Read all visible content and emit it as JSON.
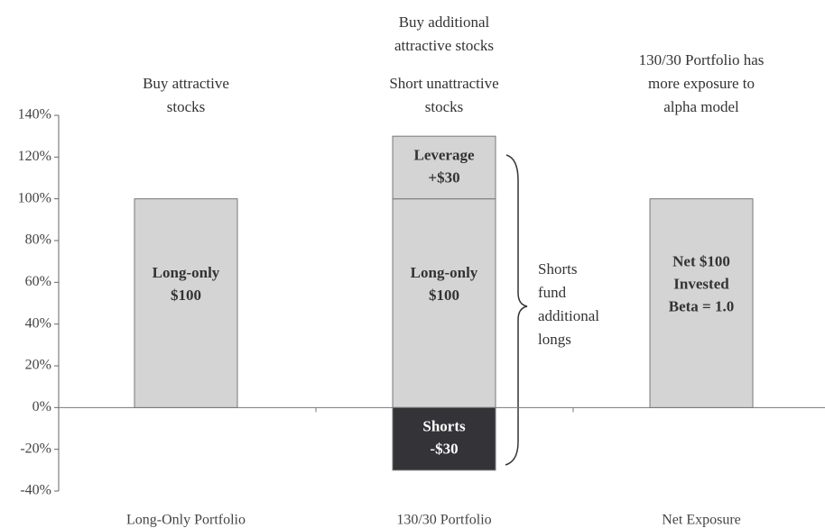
{
  "chart_data": {
    "type": "stacked-bar",
    "categories": [
      "Long-Only Portfolio",
      "130/30 Portfolio",
      "Net Exposure"
    ],
    "series": [
      {
        "color": "#d4d4d4",
        "values": [
          100,
          100,
          100
        ],
        "segment_labels": [
          [
            "Long-only",
            "$100"
          ],
          [
            "Long-only",
            "$100"
          ],
          [
            "Net $100",
            "Invested",
            "Beta = 1.0"
          ]
        ]
      },
      {
        "color": "#d4d4d4",
        "values": [
          null,
          30,
          null
        ],
        "segment_labels": [
          null,
          [
            "Leverage",
            "+$30"
          ],
          null
        ]
      },
      {
        "color": "#333338",
        "values": [
          null,
          -30,
          null
        ],
        "segment_labels": [
          null,
          [
            "Shorts",
            "-$30"
          ],
          null
        ]
      }
    ],
    "annotations": [
      [
        [
          "Buy attractive",
          "stocks"
        ]
      ],
      [
        [
          "Buy additional",
          "attractive stocks"
        ],
        [
          "Short unattractive",
          "stocks"
        ]
      ],
      [
        [
          "130/30 Portfolio has",
          "more exposure to",
          "alpha model"
        ]
      ]
    ],
    "brace_note": [
      "Shorts",
      "fund",
      "additional",
      "longs"
    ],
    "ylim": [
      -40,
      140
    ],
    "yticks": [
      {
        "value": -40,
        "label": "-40%"
      },
      {
        "value": -20,
        "label": "-20%"
      },
      {
        "value": 0,
        "label": "0%"
      },
      {
        "value": 20,
        "label": "20%"
      },
      {
        "value": 40,
        "label": "40%"
      },
      {
        "value": 60,
        "label": "60%"
      },
      {
        "value": 80,
        "label": "80%"
      },
      {
        "value": 100,
        "label": "100%"
      },
      {
        "value": 120,
        "label": "120%"
      },
      {
        "value": 140,
        "label": "140%"
      }
    ]
  }
}
